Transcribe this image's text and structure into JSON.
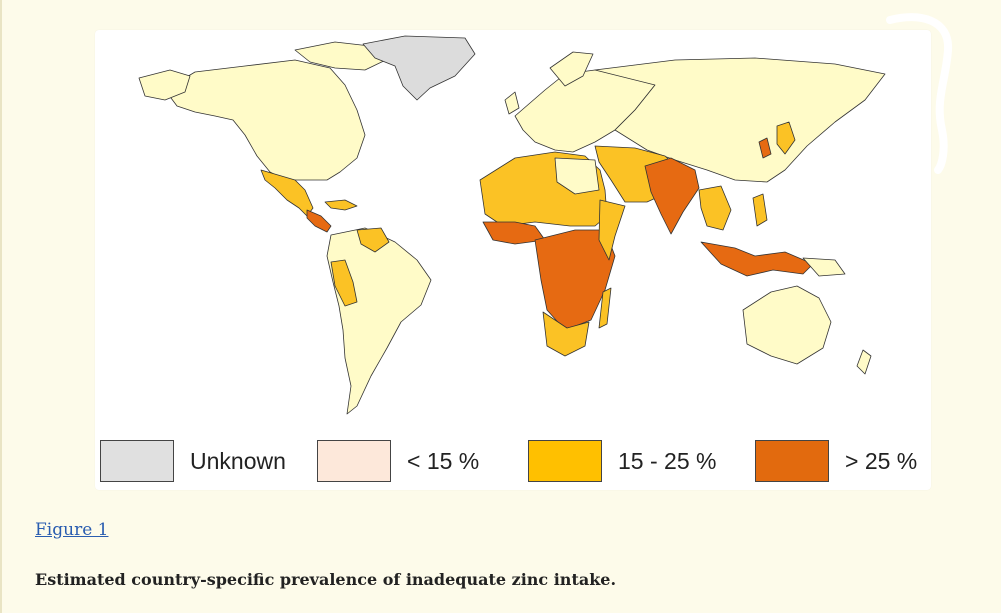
{
  "figure_link": "Figure 1",
  "caption": "Estimated country-specific prevalence of inadequate zinc intake.",
  "legend": [
    {
      "label": "Unknown",
      "color": "#e0e0e0"
    },
    {
      "label": "< 15 %",
      "color": "#fde8da"
    },
    {
      "label": "15 - 25 %",
      "color": "#ffc000"
    },
    {
      "label": "> 25 %",
      "color": "#e26a0e"
    }
  ],
  "map_colors": {
    "ocean": "#ffffff",
    "low": "#fffbc8",
    "unknown": "#dcdcdc",
    "medium": "#fbc225",
    "high": "#e66a12",
    "border": "#333333"
  }
}
